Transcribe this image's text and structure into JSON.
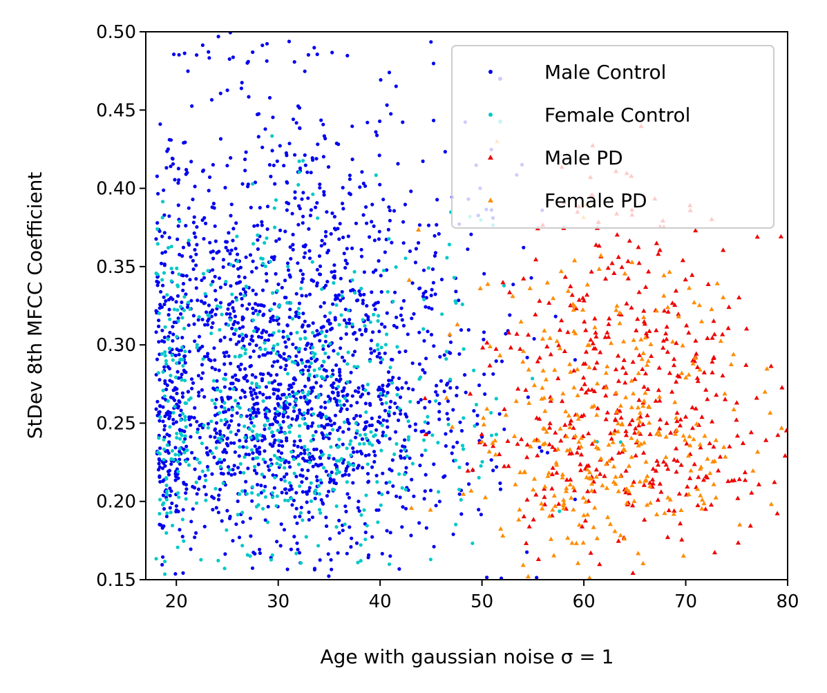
{
  "chart_data": {
    "type": "scatter",
    "title": "",
    "xlabel": "Age with gaussian noise σ = 1",
    "ylabel": "StDev 8th MFCC Coefficient",
    "xlim": [
      17,
      80
    ],
    "ylim": [
      0.15,
      0.5
    ],
    "xticks": [
      "20",
      "30",
      "40",
      "50",
      "60",
      "70",
      "80"
    ],
    "xtick_values": [
      20,
      30,
      40,
      50,
      60,
      70,
      80
    ],
    "yticks": [
      "0.15",
      "0.20",
      "0.25",
      "0.30",
      "0.35",
      "0.40",
      "0.45",
      "0.50"
    ],
    "ytick_values": [
      0.15,
      0.2,
      0.25,
      0.3,
      0.35,
      0.4,
      0.45,
      0.5
    ],
    "grid": false,
    "legend_position": "top-right",
    "series": [
      {
        "name": "Male Control",
        "color": "#0000ee",
        "marker": "circle",
        "distribution": {
          "count": 1900,
          "x_mean": 31,
          "x_sd": 9,
          "x_min": 18,
          "x_max": 80,
          "y_mean": 0.275,
          "y_sd": 0.06,
          "y_min": 0.15,
          "y_max": 0.5
        }
      },
      {
        "name": "Female Control",
        "color": "#00c8c8",
        "marker": "circle",
        "distribution": {
          "count": 600,
          "x_mean": 30,
          "x_sd": 10,
          "x_min": 18,
          "x_max": 76,
          "y_mean": 0.255,
          "y_sd": 0.045,
          "y_min": 0.15,
          "y_max": 0.5
        }
      },
      {
        "name": "Male PD",
        "color": "#ee0000",
        "marker": "triangle",
        "distribution": {
          "count": 430,
          "x_mean": 64,
          "x_sd": 7,
          "x_min": 22,
          "x_max": 80,
          "y_mean": 0.255,
          "y_sd": 0.045,
          "y_min": 0.15,
          "y_max": 0.5
        }
      },
      {
        "name": "Female PD",
        "color": "#ff8c00",
        "marker": "triangle",
        "distribution": {
          "count": 330,
          "x_mean": 62,
          "x_sd": 7,
          "x_min": 40,
          "x_max": 80,
          "y_mean": 0.245,
          "y_sd": 0.04,
          "y_min": 0.15,
          "y_max": 0.5
        }
      }
    ]
  }
}
